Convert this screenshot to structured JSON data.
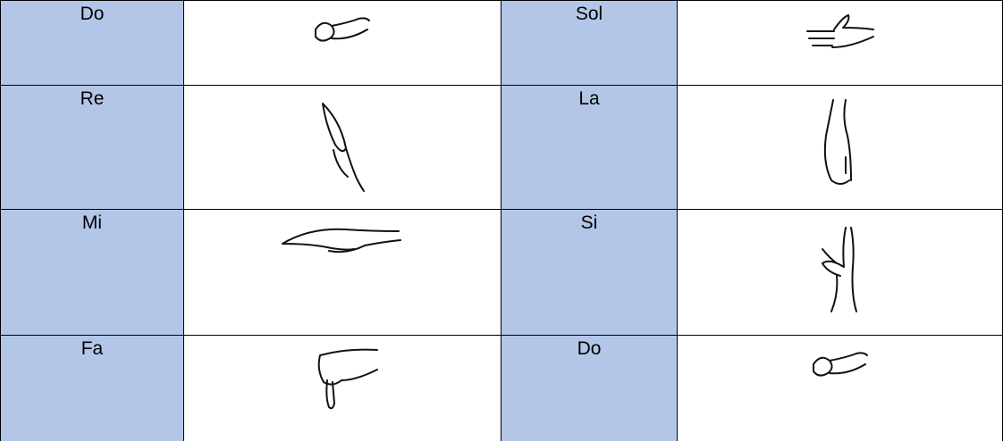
{
  "table": {
    "rows": [
      [
        "Do",
        "Sol"
      ],
      [
        "Re",
        "La"
      ],
      [
        "Mi",
        "Si"
      ],
      [
        "Fa",
        "Do"
      ]
    ]
  }
}
